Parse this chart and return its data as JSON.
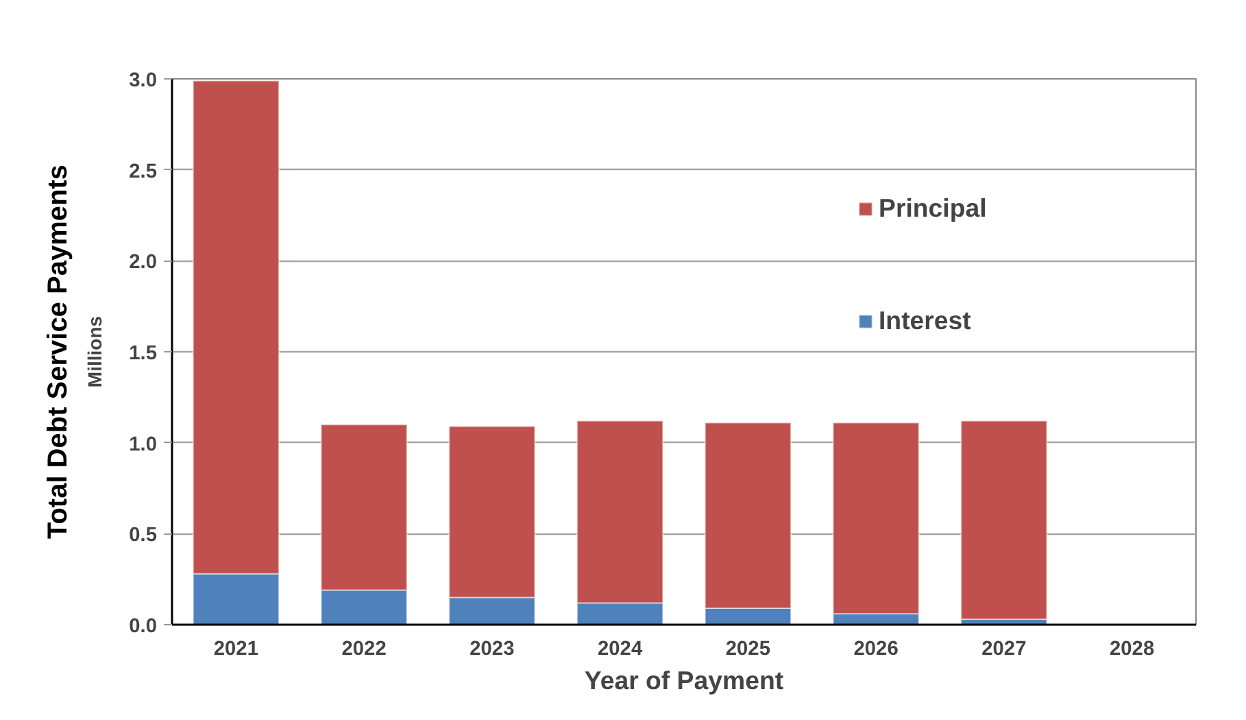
{
  "chart_data": {
    "type": "bar",
    "stacked": true,
    "xlabel": "Year of Payment",
    "ylabel": "Total Debt Service Payments",
    "annotations": [
      "Millions"
    ],
    "categories": [
      "2021",
      "2022",
      "2023",
      "2024",
      "2025",
      "2026",
      "2027",
      "2028"
    ],
    "series": [
      {
        "name": "Interest",
        "color": "#4f81bd",
        "values": [
          0.28,
          0.19,
          0.15,
          0.12,
          0.09,
          0.06,
          0.03,
          null
        ]
      },
      {
        "name": "Principal",
        "color": "#c0504d",
        "values": [
          2.71,
          0.91,
          0.94,
          1.0,
          1.02,
          1.05,
          1.09,
          null
        ]
      }
    ],
    "ylim": [
      0,
      3.0
    ],
    "yticks": [
      {
        "value": 0,
        "label": "0.0"
      },
      {
        "value": 0.5,
        "label": "0.5"
      },
      {
        "value": 1.0,
        "label": "1.0"
      },
      {
        "value": 1.5,
        "label": "1.5"
      },
      {
        "value": 2.0,
        "label": "2.0"
      },
      {
        "value": 2.5,
        "label": "2.5"
      },
      {
        "value": 3.0,
        "label": "3.0"
      }
    ],
    "grid": "y",
    "legend": "right"
  }
}
